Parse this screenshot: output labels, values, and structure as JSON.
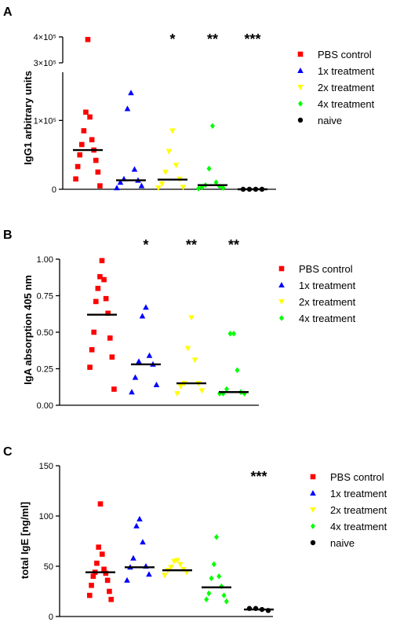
{
  "figure": {
    "panels": [
      {
        "letter": "A"
      },
      {
        "letter": "B"
      },
      {
        "letter": "C"
      }
    ]
  },
  "chart_data": [
    {
      "type": "scatter",
      "panel": "A",
      "ylabel": "IgG1 arbitrary units",
      "scale": "broken",
      "ylim_lower": [
        0,
        170000
      ],
      "ylim_upper": [
        300000,
        400000
      ],
      "yticks": [
        {
          "value": 0,
          "label": "0"
        },
        {
          "value": 100000,
          "label": "1×10⁵"
        },
        {
          "value": 300000,
          "label": "3×10⁵"
        },
        {
          "value": 400000,
          "label": "4×10⁵"
        }
      ],
      "significance": [
        "",
        "",
        "*",
        "**",
        "***"
      ],
      "series": [
        {
          "name": "PBS control",
          "color": "#ff0000",
          "marker": "square",
          "median": 57000,
          "values": [
            390000,
            112000,
            105000,
            85000,
            72000,
            65000,
            57000,
            50000,
            42000,
            33000,
            25000,
            15000,
            5000
          ]
        },
        {
          "name": "1x treatment",
          "color": "#0000ff",
          "marker": "triangle-up",
          "median": 13000,
          "values": [
            140000,
            117000,
            29000,
            15000,
            13000,
            10000,
            5000,
            2000
          ]
        },
        {
          "name": "2x treatment",
          "color": "#ffff00",
          "marker": "triangle-down",
          "median": 14000,
          "values": [
            85000,
            55000,
            35000,
            25000,
            15000,
            8000,
            3000,
            2000
          ]
        },
        {
          "name": "4x treatment",
          "color": "#00ff00",
          "marker": "diamond",
          "median": 6000,
          "values": [
            92000,
            30000,
            10000,
            6000,
            4000,
            3000,
            2000,
            1000
          ]
        },
        {
          "name": "naive",
          "color": "#000000",
          "marker": "circle",
          "median": 0,
          "values": [
            0,
            0,
            0,
            0
          ]
        }
      ]
    },
    {
      "type": "scatter",
      "panel": "B",
      "ylabel": "IgA absorption 405 nm",
      "ylim": [
        0,
        1.0
      ],
      "yticks": [
        {
          "value": 0,
          "label": "0.00"
        },
        {
          "value": 0.25,
          "label": "0.25"
        },
        {
          "value": 0.5,
          "label": "0.50"
        },
        {
          "value": 0.75,
          "label": "0.75"
        },
        {
          "value": 1.0,
          "label": "1.00"
        }
      ],
      "significance": [
        "",
        "*",
        "**",
        "**"
      ],
      "series": [
        {
          "name": "PBS control",
          "color": "#ff0000",
          "marker": "square",
          "median": 0.62,
          "values": [
            0.99,
            0.88,
            0.86,
            0.8,
            0.73,
            0.71,
            0.63,
            0.5,
            0.46,
            0.38,
            0.33,
            0.26,
            0.11
          ]
        },
        {
          "name": "1x treatment",
          "color": "#0000ff",
          "marker": "triangle-up",
          "median": 0.28,
          "values": [
            0.67,
            0.61,
            0.34,
            0.3,
            0.28,
            0.19,
            0.14,
            0.09
          ]
        },
        {
          "name": "2x treatment",
          "color": "#ffff00",
          "marker": "triangle-down",
          "median": 0.15,
          "values": [
            0.6,
            0.39,
            0.31,
            0.15,
            0.15,
            0.13,
            0.1,
            0.08
          ]
        },
        {
          "name": "4x treatment",
          "color": "#00ff00",
          "marker": "diamond",
          "median": 0.09,
          "values": [
            0.49,
            0.49,
            0.24,
            0.11,
            0.09,
            0.08,
            0.08,
            0.08
          ]
        }
      ]
    },
    {
      "type": "scatter",
      "panel": "C",
      "ylabel": "total IgE [ng/ml]",
      "ylim": [
        0,
        150
      ],
      "yticks": [
        {
          "value": 0,
          "label": "0"
        },
        {
          "value": 50,
          "label": "50"
        },
        {
          "value": 100,
          "label": "100"
        },
        {
          "value": 150,
          "label": "150"
        }
      ],
      "significance": [
        "",
        "",
        "",
        "",
        "***"
      ],
      "series": [
        {
          "name": "PBS control",
          "color": "#ff0000",
          "marker": "square",
          "median": 44,
          "values": [
            112,
            69,
            62,
            53,
            47,
            44,
            43,
            40,
            36,
            31,
            25,
            21,
            17
          ]
        },
        {
          "name": "1x treatment",
          "color": "#0000ff",
          "marker": "triangle-up",
          "median": 49,
          "values": [
            97,
            90,
            74,
            58,
            50,
            49,
            42,
            36
          ]
        },
        {
          "name": "2x treatment",
          "color": "#ffff00",
          "marker": "triangle-down",
          "median": 46,
          "values": [
            56,
            55,
            52,
            49,
            47,
            46,
            44,
            41
          ]
        },
        {
          "name": "4x treatment",
          "color": "#00ff00",
          "marker": "diamond",
          "median": 29,
          "values": [
            79,
            52,
            40,
            38,
            30,
            23,
            21,
            17,
            15
          ]
        },
        {
          "name": "naive",
          "color": "#000000",
          "marker": "circle",
          "median": 7,
          "values": [
            8,
            8,
            7,
            6
          ]
        }
      ]
    }
  ]
}
